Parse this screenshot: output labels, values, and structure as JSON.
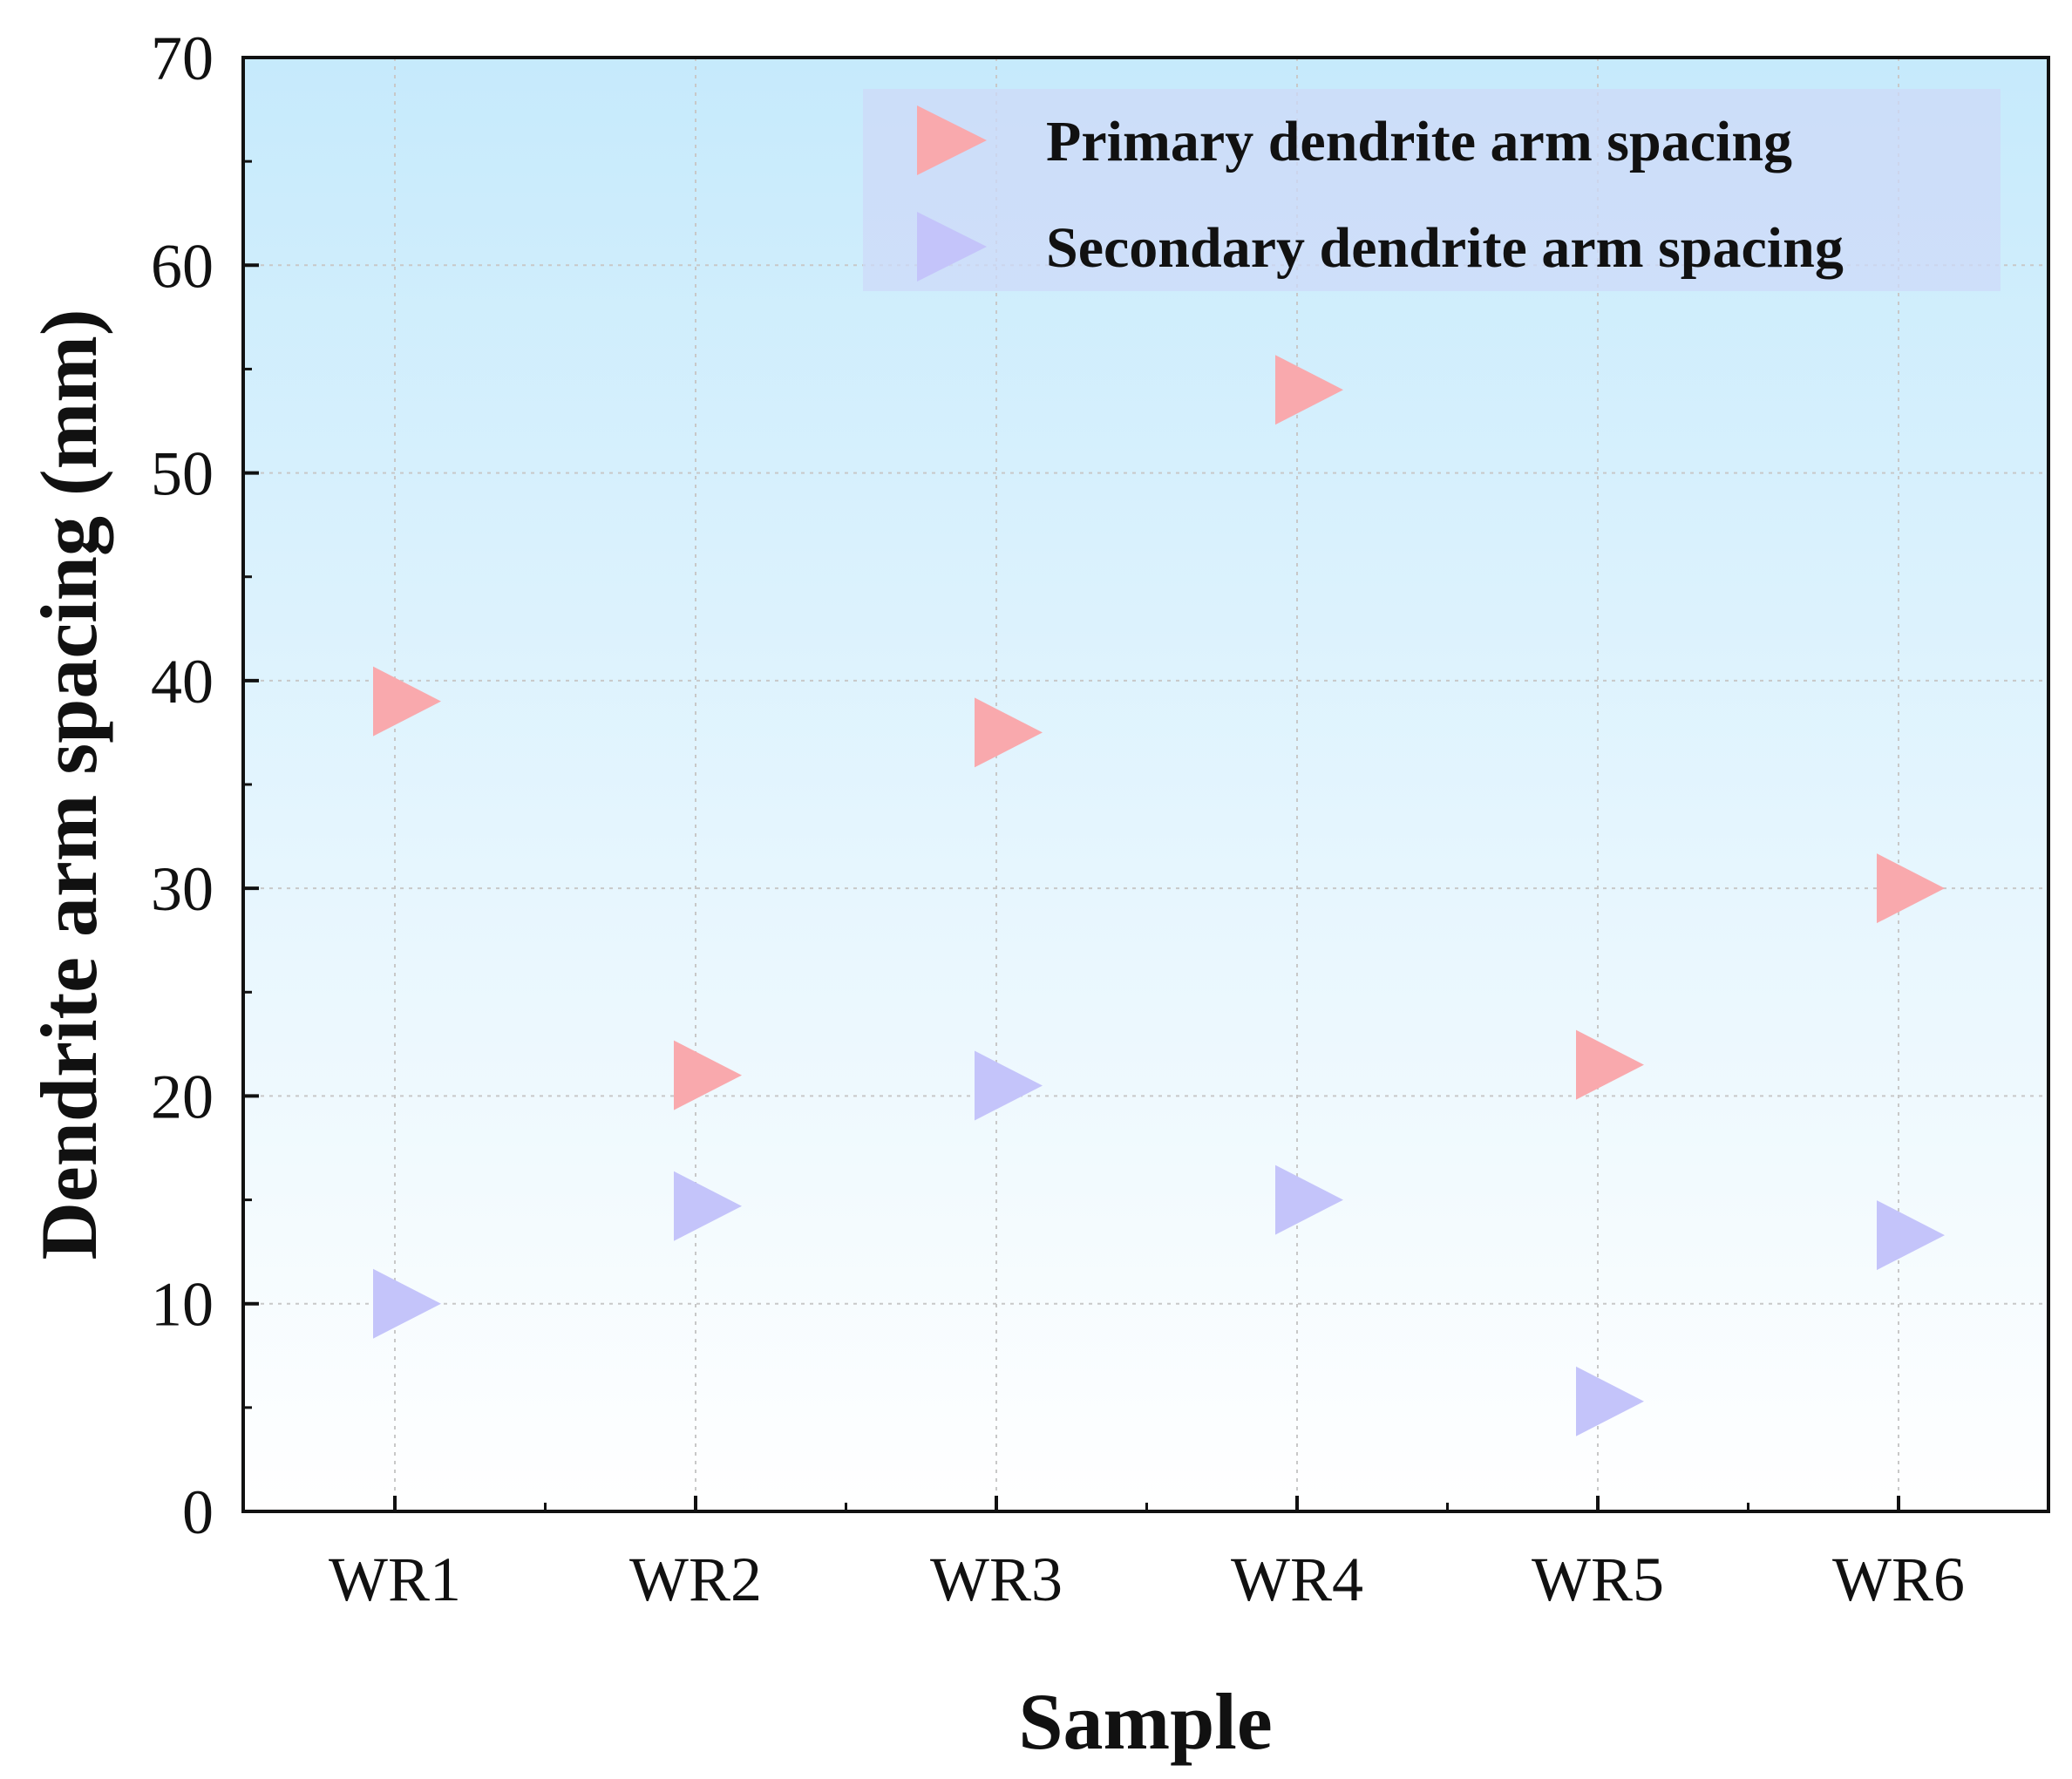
{
  "chart_data": {
    "type": "scatter",
    "title": "",
    "xlabel": "Sample",
    "ylabel": "Dendrite arm spacing (mm)",
    "categories": [
      "WR1",
      "WR2",
      "WR3",
      "WR4",
      "WR5",
      "WR6"
    ],
    "ylim": [
      0,
      70
    ],
    "yticks": [
      0,
      10,
      20,
      30,
      40,
      50,
      60,
      70
    ],
    "grid": true,
    "legend_position": "top-right",
    "series": [
      {
        "name": "Primary dendrite arm spacing",
        "marker": "right-triangle",
        "color": "#f9a9ad",
        "values": [
          39.0,
          21.0,
          37.5,
          54.0,
          21.5,
          30.0
        ]
      },
      {
        "name": "Secondary dendrite arm spacing",
        "marker": "right-triangle",
        "color": "#c4c4fa",
        "values": [
          10.0,
          14.7,
          20.5,
          15.0,
          5.3,
          13.3
        ]
      }
    ]
  },
  "colors": {
    "background_top": "#c6eafc",
    "background_bottom": "#ffffff",
    "axis": "#111111",
    "grid": "#c8c8c8",
    "legend_bg": "#cdd9f8"
  }
}
